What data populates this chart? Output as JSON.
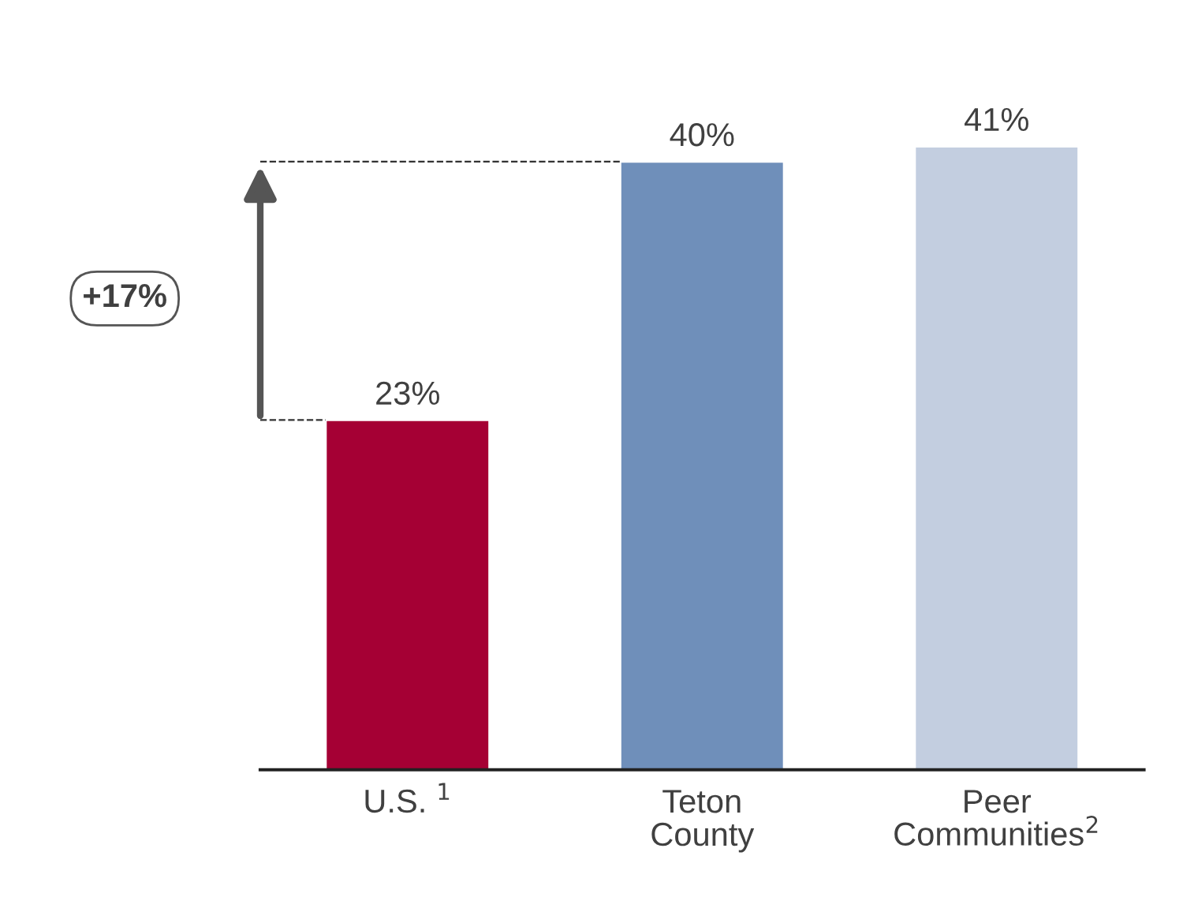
{
  "chart_data": {
    "type": "bar",
    "categories": [
      "U.S. $^{1}$",
      "Teton\nCounty",
      "Peer\nCommunities$^{2}$"
    ],
    "values": [
      23,
      40,
      41
    ],
    "colors": [
      "#a50034",
      "#6f8fba",
      "#c3cee0"
    ],
    "value_labels": [
      "23%",
      "40%",
      "41%"
    ],
    "annotations": [
      "+17%"
    ],
    "ref_lines": [
      {
        "axis": "y",
        "value": 40,
        "color": "#333333",
        "line_style": "dashed"
      }
    ],
    "grid": false,
    "legend": false
  }
}
